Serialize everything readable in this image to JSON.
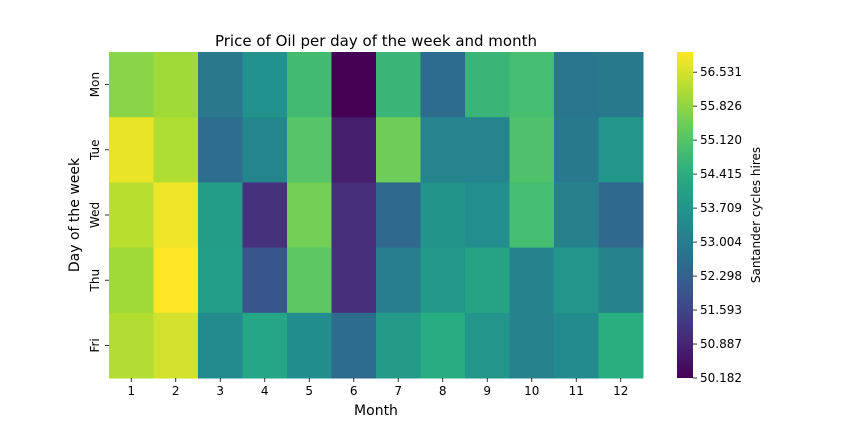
{
  "chart_data": {
    "type": "heatmap",
    "title": "Price of Oil per day of the week and month",
    "xlabel": "Month",
    "ylabel": "Day of the week",
    "x_categories": [
      "1",
      "2",
      "3",
      "4",
      "5",
      "6",
      "7",
      "8",
      "9",
      "10",
      "11",
      "12"
    ],
    "y_categories": [
      "Mon",
      "Tue",
      "Wed",
      "Thu",
      "Fri"
    ],
    "values": [
      [
        55.75,
        56.0,
        52.9,
        53.65,
        54.85,
        50.18,
        54.7,
        52.6,
        54.7,
        54.9,
        52.85,
        52.95
      ],
      [
        56.75,
        56.15,
        52.65,
        53.3,
        55.15,
        50.75,
        55.45,
        53.25,
        53.25,
        55.05,
        52.95,
        53.75
      ],
      [
        56.25,
        56.8,
        53.95,
        51.15,
        55.5,
        51.1,
        52.5,
        53.7,
        53.5,
        54.9,
        53.15,
        52.5
      ],
      [
        56.0,
        56.95,
        54.0,
        52.0,
        55.25,
        51.1,
        53.05,
        53.85,
        54.15,
        53.2,
        53.75,
        53.2
      ],
      [
        56.2,
        56.5,
        53.4,
        54.2,
        53.45,
        52.6,
        53.9,
        54.4,
        53.75,
        53.2,
        53.4,
        54.45
      ]
    ],
    "colormap": "viridis",
    "colorbar": {
      "label": "Santander cycles hires",
      "ticks": [
        "56.531",
        "55.826",
        "55.120",
        "54.415",
        "53.709",
        "53.004",
        "52.298",
        "51.593",
        "50.887",
        "50.182"
      ],
      "min": 50.182,
      "max": 56.95
    },
    "grid": false,
    "legend": "none"
  }
}
